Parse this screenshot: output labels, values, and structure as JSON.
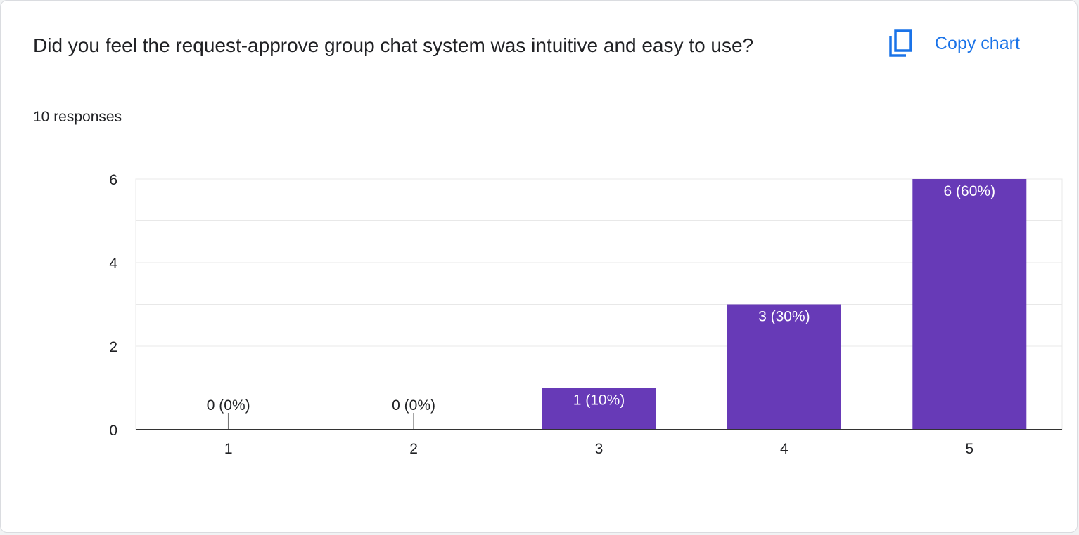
{
  "question": {
    "title": "Did you feel the request-approve group chat system was intuitive and easy to use?",
    "responses_text": "10 responses"
  },
  "toolbar": {
    "copy_label": "Copy chart",
    "copy_icon": "copy-icon"
  },
  "colors": {
    "bar": "#673ab7",
    "accent": "#1a73e8",
    "text": "#202124",
    "grid": "#e8e8e8",
    "axis": "#333333"
  },
  "chart_data": {
    "type": "bar",
    "categories": [
      "1",
      "2",
      "3",
      "4",
      "5"
    ],
    "values": [
      0,
      0,
      1,
      3,
      6
    ],
    "data_labels": [
      "0 (0%)",
      "0 (0%)",
      "1 (10%)",
      "3 (30%)",
      "6 (60%)"
    ],
    "ylim": [
      0,
      6
    ],
    "yticks": [
      0,
      2,
      4,
      6
    ],
    "grid": true,
    "legend": "none"
  }
}
